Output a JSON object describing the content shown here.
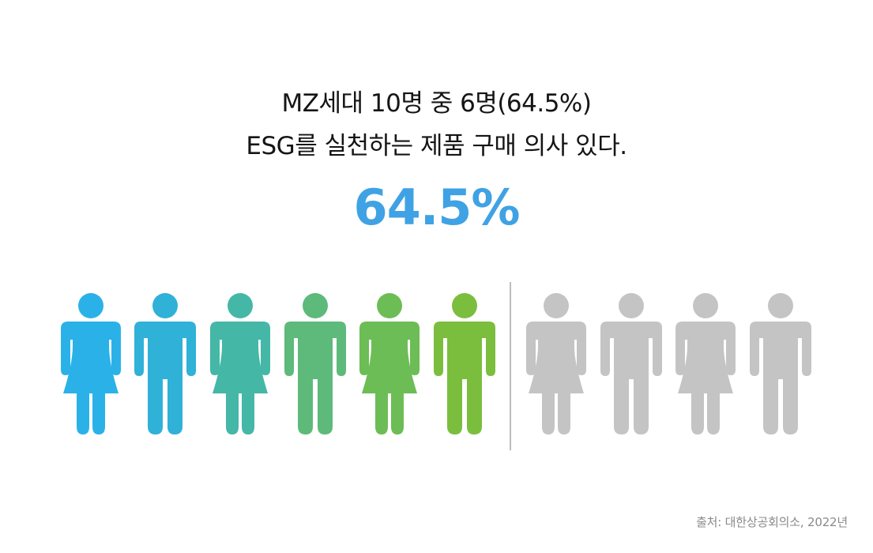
{
  "headline": {
    "line1": "MZ세대 10명 중 6명(64.5%)",
    "line2": "ESG를 실천하는 제품 구매 의사 있다."
  },
  "big_value_text": "64.5%",
  "source": "출처: 대한상공회의소, 2022년",
  "colors": {
    "headline_value": "#3FA2E4",
    "inactive": "#C4C4C4",
    "divider": "#BDBDBD",
    "active_gradient": [
      "#2AB2E8",
      "#2FB1D8",
      "#45B7A6",
      "#5DBA7A",
      "#6CBD55",
      "#7BBE3E"
    ]
  },
  "chart_data": {
    "type": "pictograph",
    "total": 10,
    "filled": 6,
    "value_percent": 64.5,
    "icons": [
      {
        "gender": "female",
        "filled": true
      },
      {
        "gender": "male",
        "filled": true
      },
      {
        "gender": "female",
        "filled": true
      },
      {
        "gender": "male",
        "filled": true
      },
      {
        "gender": "female",
        "filled": true
      },
      {
        "gender": "male",
        "filled": true
      },
      {
        "gender": "female",
        "filled": false
      },
      {
        "gender": "male",
        "filled": false
      },
      {
        "gender": "female",
        "filled": false
      },
      {
        "gender": "male",
        "filled": false
      }
    ]
  }
}
